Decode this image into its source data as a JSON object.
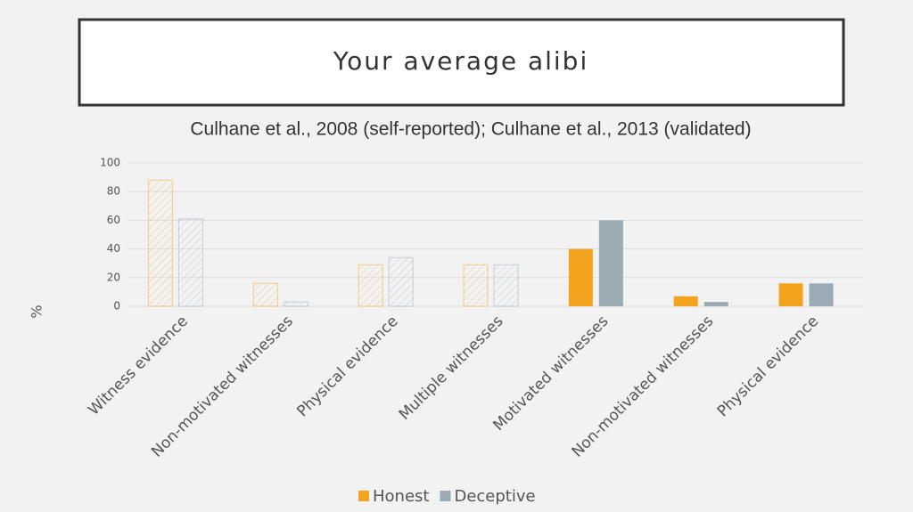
{
  "slide_title": "Your average alibi",
  "chart_data": {
    "type": "bar",
    "title": "Culhane et al., 2008 (self-reported);  Culhane et al., 2013 (validated)",
    "y_label": "%",
    "categories": [
      "Witness evidence",
      "Non-motivated witnesses",
      "Physical evidence",
      "Multiple witnesses",
      "Motivated witnesses",
      "Non-motivated witnesses",
      "Physical evidence"
    ],
    "hatched": [
      true,
      true,
      true,
      true,
      false,
      false,
      false
    ],
    "series": [
      {
        "name": "Honest",
        "color": "#f4a31f",
        "values": [
          88,
          16,
          29,
          29,
          40,
          7,
          16
        ]
      },
      {
        "name": "Deceptive",
        "color": "#9aabb3",
        "values": [
          61,
          3,
          34,
          29,
          60,
          3,
          16
        ]
      }
    ],
    "ylim": [
      0,
      100
    ],
    "yticks": [
      0,
      20,
      40,
      60,
      80,
      100
    ],
    "grid": true
  }
}
